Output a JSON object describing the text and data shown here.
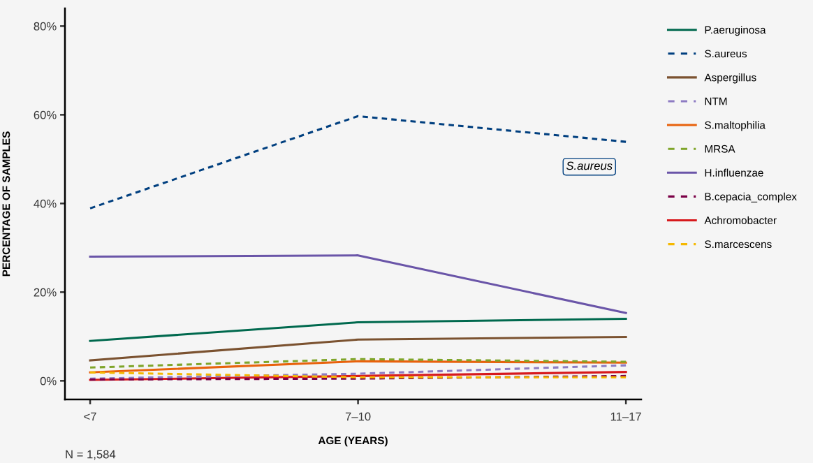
{
  "chart_data": {
    "type": "line",
    "xlabel": "AGE (YEARS)",
    "ylabel": "PERCENTAGE OF SAMPLES",
    "categories": [
      "<7",
      "7–10",
      "11–17"
    ],
    "ylim": [
      -4.2,
      84
    ],
    "yticks": [
      {
        "value": 0,
        "label": "0%"
      },
      {
        "value": 20,
        "label": "20%"
      },
      {
        "value": 40,
        "label": "40%"
      },
      {
        "value": 60,
        "label": "60%"
      },
      {
        "value": 80,
        "label": "80%"
      }
    ],
    "grid": false,
    "legend": "top right",
    "marker": "none",
    "annotations": [
      "S.aureus",
      "N = 1,584"
    ],
    "series": [
      {
        "name": "P.aeruginosa",
        "color": "#00694e",
        "line_style": "solid",
        "values": [
          9.0,
          13.2,
          14.0
        ]
      },
      {
        "name": "S.aureus",
        "color": "#003f7f",
        "line_style": "dashed",
        "values": [
          38.9,
          59.7,
          53.9
        ]
      },
      {
        "name": "Aspergillus",
        "color": "#7b5230",
        "line_style": "solid",
        "values": [
          4.6,
          9.3,
          9.9
        ]
      },
      {
        "name": "NTM",
        "color": "#8e7cc3",
        "line_style": "dashed",
        "values": [
          0.5,
          1.6,
          3.5
        ]
      },
      {
        "name": "S.maltophilia",
        "color": "#e8620c",
        "line_style": "solid",
        "values": [
          1.9,
          4.4,
          4.1
        ]
      },
      {
        "name": "MRSA",
        "color": "#7fa52a",
        "line_style": "dashed",
        "values": [
          3.0,
          4.9,
          4.3
        ]
      },
      {
        "name": "H.influenzae",
        "color": "#6a55a8",
        "line_style": "solid",
        "values": [
          28.0,
          28.3,
          15.3
        ]
      },
      {
        "name": "B.cepacia_complex",
        "color": "#7b0046",
        "line_style": "dashed",
        "values": [
          0.3,
          0.5,
          1.1
        ]
      },
      {
        "name": "Achromobacter",
        "color": "#d7191c",
        "line_style": "solid",
        "values": [
          0.2,
          1.1,
          2.0
        ]
      },
      {
        "name": "S.marcescens",
        "color": "#f5b800",
        "line_style": "dashed",
        "values": [
          1.9,
          0.8,
          0.8
        ]
      }
    ]
  }
}
